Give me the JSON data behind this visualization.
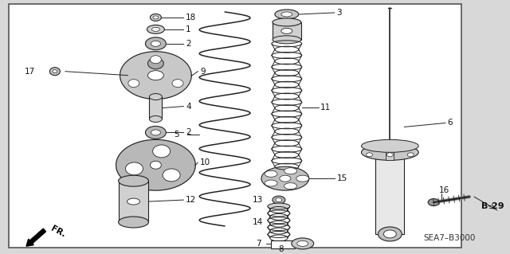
{
  "bg_color": "#d8d8d8",
  "box_bg": "#ffffff",
  "line_color": "#222222",
  "label_color": "#111111",
  "border_lw": 1.2,
  "sea_text": "SEA7–B3000",
  "b29_text": "B-29"
}
